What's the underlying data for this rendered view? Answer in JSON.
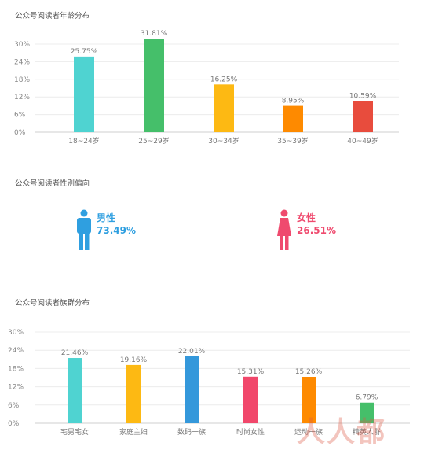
{
  "titles": {
    "age": "公众号阅读者年龄分布",
    "gender": "公众号阅读者性别偏向",
    "group": "公众号阅读者族群分布"
  },
  "gender": {
    "male": {
      "label": "男性",
      "value": "73.49%",
      "color": "#2f9fe0"
    },
    "female": {
      "label": "女性",
      "value": "26.51%",
      "color": "#ef4a6e"
    }
  },
  "watermark": "人人都",
  "chart_data": [
    {
      "type": "bar",
      "title": "公众号阅读者年龄分布",
      "categories": [
        "18~24岁",
        "25~29岁",
        "30~34岁",
        "35~39岁",
        "40~49岁"
      ],
      "values": [
        25.75,
        31.81,
        16.25,
        8.95,
        10.59
      ],
      "value_labels": [
        "25.75%",
        "31.81%",
        "16.25%",
        "8.95%",
        "10.59%"
      ],
      "colors": [
        "#4fd3d1",
        "#45bf6a",
        "#fdb913",
        "#fe8a00",
        "#e84c3d"
      ],
      "yticks": [
        "0%",
        "6%",
        "12%",
        "18%",
        "24%",
        "30%"
      ],
      "ylim": [
        0,
        30
      ],
      "grid": true
    },
    {
      "type": "bar",
      "title": "公众号阅读者族群分布",
      "categories": [
        "宅男宅女",
        "家庭主妇",
        "数码一族",
        "时尚女性",
        "运动一族",
        "精英人群"
      ],
      "values": [
        21.46,
        19.16,
        22.01,
        15.31,
        15.26,
        6.79
      ],
      "value_labels": [
        "21.46%",
        "19.16%",
        "22.01%",
        "15.31%",
        "15.26%",
        "6.79%"
      ],
      "colors": [
        "#4fd3d1",
        "#fdb913",
        "#3498db",
        "#f1476b",
        "#fe8a00",
        "#45bf6a"
      ],
      "yticks": [
        "0%",
        "6%",
        "12%",
        "18%",
        "24%",
        "30%"
      ],
      "ylim": [
        0,
        30
      ],
      "grid": true
    }
  ]
}
